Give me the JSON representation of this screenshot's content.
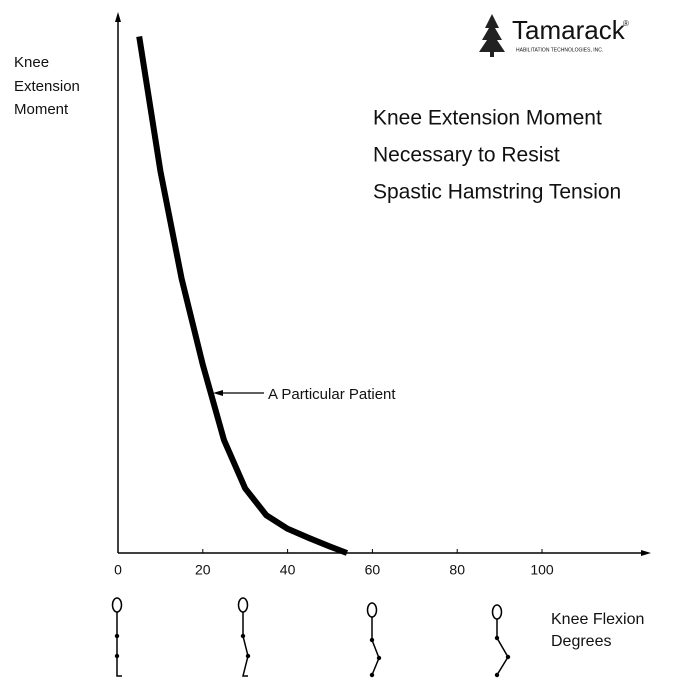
{
  "chart_data": {
    "type": "line",
    "title": [
      "Knee Extension Moment",
      "Necessary to Resist",
      "Spastic Hamstring Tension"
    ],
    "y_label": [
      "Knee",
      "Extension",
      "Moment"
    ],
    "x_label": [
      "Knee Flexion",
      "Degrees"
    ],
    "annotation": "A Particular Patient",
    "logo": {
      "name": "Tamarack",
      "mark": "®",
      "tagline": "HABILITATION TECHNOLOGIES, INC."
    },
    "series": [
      {
        "name": "A Particular Patient",
        "color": "#000000",
        "x": [
          5,
          10,
          15,
          20,
          25,
          30,
          35,
          40,
          45,
          50,
          54
        ],
        "values": [
          96,
          71,
          51,
          35,
          21,
          12,
          7,
          4.5,
          2.8,
          1.2,
          0
        ]
      }
    ],
    "xlim": [
      0,
      125
    ],
    "ylim": [
      0,
      100
    ],
    "xticks": [
      0,
      20,
      40,
      60,
      80,
      100
    ]
  }
}
